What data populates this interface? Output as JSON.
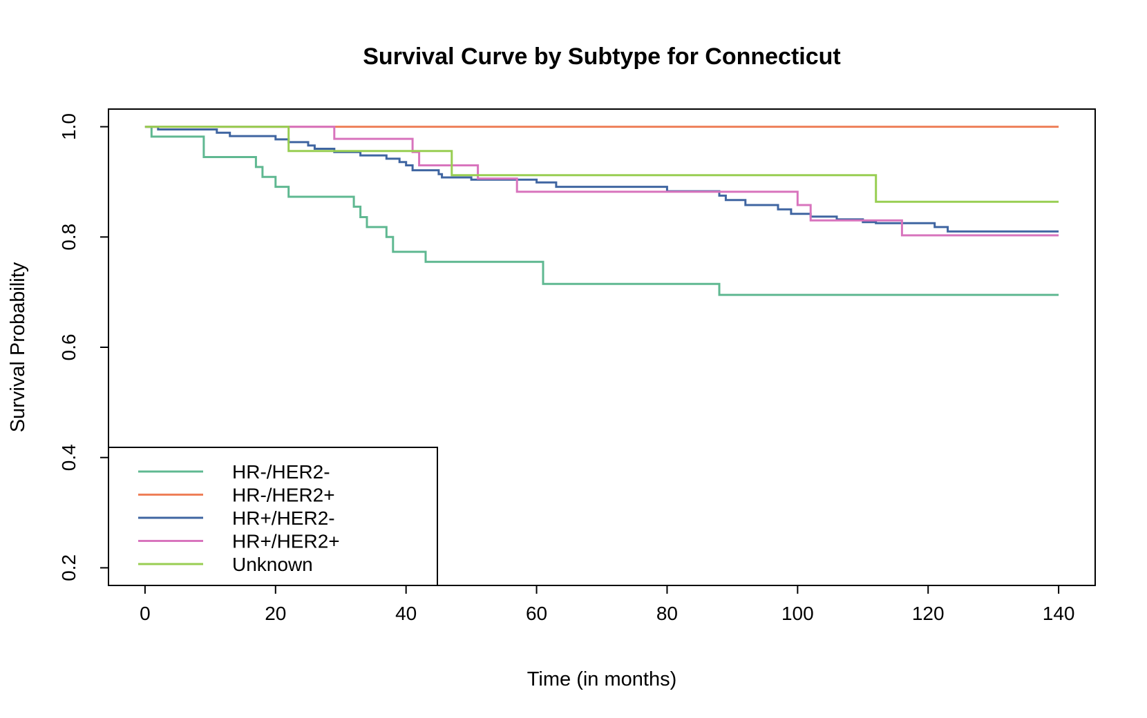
{
  "chart_data": {
    "type": "line",
    "step": true,
    "title": "Survival Curve by Subtype for Connecticut",
    "xlabel": "Time (in months)",
    "ylabel": "Survival Probability",
    "xlim": [
      -5.6,
      145.6
    ],
    "ylim": [
      0.168,
      1.032
    ],
    "xticks": [
      0,
      20,
      40,
      60,
      80,
      100,
      120,
      140
    ],
    "yticks": [
      0.2,
      0.4,
      0.6,
      0.8,
      1.0
    ],
    "ytick_labels": [
      "0.2",
      "0.4",
      "0.6",
      "0.8",
      "1.0"
    ],
    "grid": false,
    "legend_position": "bottom-left",
    "series": [
      {
        "name": "HR-/HER2-",
        "color": "#5fb891",
        "points": [
          [
            0,
            1.0
          ],
          [
            1,
            0.982
          ],
          [
            9,
            0.945
          ],
          [
            17,
            0.927
          ],
          [
            18,
            0.909
          ],
          [
            20,
            0.891
          ],
          [
            22,
            0.873
          ],
          [
            32,
            0.855
          ],
          [
            33,
            0.836
          ],
          [
            34,
            0.818
          ],
          [
            37,
            0.8
          ],
          [
            38,
            0.773
          ],
          [
            43,
            0.755
          ],
          [
            61,
            0.715
          ],
          [
            88,
            0.695
          ],
          [
            140,
            0.695
          ]
        ]
      },
      {
        "name": "HR-/HER2+",
        "color": "#ee7f58",
        "points": [
          [
            0,
            1.0
          ],
          [
            140,
            1.0
          ]
        ]
      },
      {
        "name": "HR+/HER2-",
        "color": "#3f65a1",
        "points": [
          [
            0,
            1.0
          ],
          [
            2,
            0.995
          ],
          [
            11,
            0.989
          ],
          [
            13,
            0.983
          ],
          [
            20,
            0.977
          ],
          [
            22,
            0.972
          ],
          [
            25,
            0.966
          ],
          [
            26,
            0.96
          ],
          [
            29,
            0.954
          ],
          [
            33,
            0.948
          ],
          [
            37,
            0.942
          ],
          [
            39,
            0.936
          ],
          [
            40,
            0.93
          ],
          [
            41,
            0.921
          ],
          [
            45,
            0.914
          ],
          [
            45.5,
            0.908
          ],
          [
            50,
            0.904
          ],
          [
            60,
            0.899
          ],
          [
            63,
            0.891
          ],
          [
            80,
            0.883
          ],
          [
            88,
            0.875
          ],
          [
            89,
            0.867
          ],
          [
            92,
            0.858
          ],
          [
            97,
            0.85
          ],
          [
            99,
            0.842
          ],
          [
            102,
            0.837
          ],
          [
            106,
            0.832
          ],
          [
            110,
            0.827
          ],
          [
            112,
            0.825
          ],
          [
            121,
            0.818
          ],
          [
            123,
            0.81
          ],
          [
            140,
            0.81
          ]
        ]
      },
      {
        "name": "HR+/HER2+",
        "color": "#d874bd",
        "points": [
          [
            0,
            1.0
          ],
          [
            29,
            0.978
          ],
          [
            41,
            0.954
          ],
          [
            42,
            0.93
          ],
          [
            51,
            0.906
          ],
          [
            57,
            0.882
          ],
          [
            100,
            0.858
          ],
          [
            102,
            0.83
          ],
          [
            116,
            0.803
          ],
          [
            140,
            0.803
          ]
        ]
      },
      {
        "name": "Unknown",
        "color": "#98ce52",
        "points": [
          [
            0,
            1.0
          ],
          [
            22,
            0.956
          ],
          [
            47,
            0.912
          ],
          [
            112,
            0.864
          ],
          [
            140,
            0.864
          ]
        ]
      }
    ]
  }
}
